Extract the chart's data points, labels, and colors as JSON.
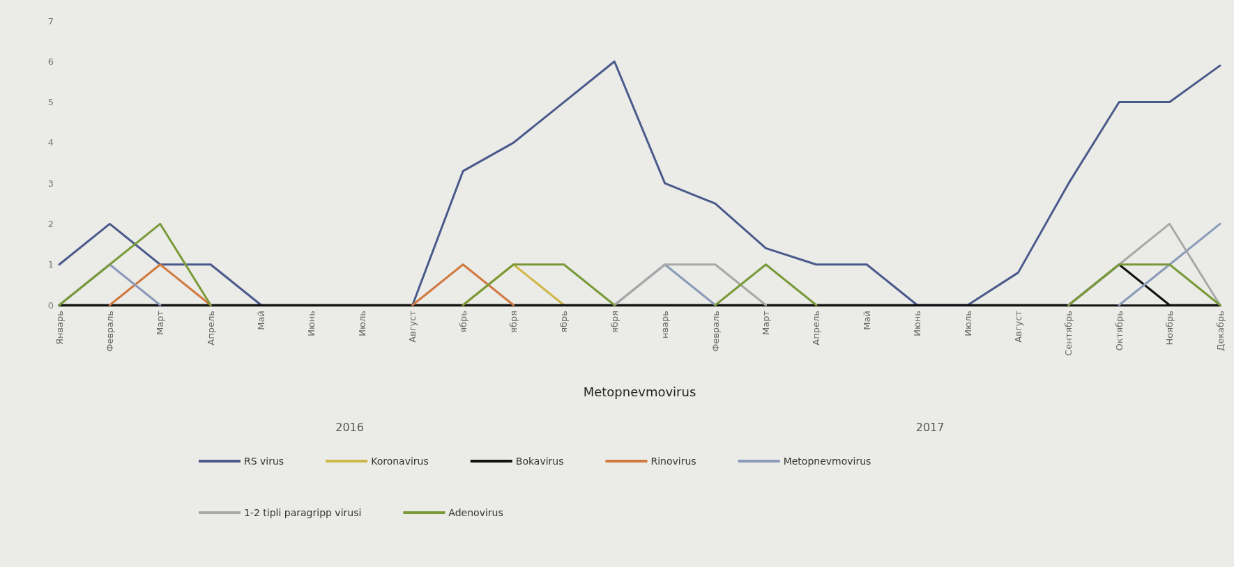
{
  "chart_data": {
    "type": "line",
    "xlabel": "Metopnevmovirus",
    "annotations": [
      "2016",
      "2017"
    ],
    "categories": [
      "Январь",
      "Февраль",
      "Март",
      "Апрель",
      "Май",
      "Июнь",
      "Июль",
      "Август",
      "ябрь",
      "ября",
      "ябрь",
      "ября",
      "нварь",
      "Февраль",
      "Март",
      "Апрель",
      "Май",
      "Июнь",
      "Июль",
      "Август",
      "Сентябрь",
      "Октябрь",
      "Ноябрь",
      "Декабрь"
    ],
    "series": [
      {
        "name": "RS virus",
        "color": "#4a5a8a",
        "values": [
          1,
          2,
          1,
          1,
          0,
          null,
          null,
          0,
          3.3,
          4,
          5,
          6,
          3,
          2.5,
          1.4,
          1,
          1,
          0,
          0,
          0.8,
          3,
          5,
          5,
          5.9
        ]
      },
      {
        "name": "Koronavirus",
        "color": "#d0b848",
        "values": [
          null,
          null,
          null,
          null,
          null,
          null,
          null,
          null,
          0,
          1,
          0,
          null,
          null,
          null,
          null,
          null,
          null,
          null,
          null,
          null,
          null,
          null,
          null,
          null
        ]
      },
      {
        "name": "Bokavirus",
        "color": "#111111",
        "values": [
          0,
          0,
          0,
          0,
          0,
          0,
          0,
          0,
          0,
          0,
          0,
          0,
          0,
          0,
          0,
          0,
          0,
          0,
          0,
          0,
          0,
          1,
          0,
          0
        ]
      },
      {
        "name": "Rinovirus",
        "color": "#d07a40",
        "values": [
          null,
          0,
          1,
          0,
          null,
          null,
          null,
          0,
          1,
          0,
          null,
          null,
          null,
          null,
          null,
          null,
          null,
          null,
          null,
          null,
          null,
          null,
          null,
          null
        ]
      },
      {
        "name": "Metopnevmovirus",
        "color": "#8a9ab8",
        "values": [
          0,
          1,
          0,
          null,
          null,
          null,
          null,
          null,
          null,
          null,
          null,
          0,
          1,
          0,
          null,
          null,
          null,
          null,
          null,
          null,
          null,
          0,
          1,
          2
        ]
      },
      {
        "name": "1-2 tipli paragripp virusi",
        "color": "#a8a8a8",
        "values": [
          null,
          null,
          null,
          null,
          null,
          null,
          null,
          null,
          null,
          null,
          null,
          0,
          1,
          1,
          0,
          null,
          null,
          null,
          null,
          null,
          0,
          1,
          2,
          0
        ]
      },
      {
        "name": "Adenovirus",
        "color": "#7a9a3a",
        "values": [
          0,
          1,
          2,
          0,
          null,
          null,
          null,
          null,
          0,
          1,
          1,
          0,
          null,
          0,
          1,
          0,
          null,
          null,
          null,
          null,
          0,
          1,
          1,
          0
        ]
      }
    ],
    "ylim": [
      0,
      7
    ],
    "yticks": [
      0,
      1,
      2,
      3,
      4,
      5,
      6,
      7
    ],
    "grid": false,
    "legend": "bottom",
    "marker": "none",
    "line_style": "solid"
  }
}
